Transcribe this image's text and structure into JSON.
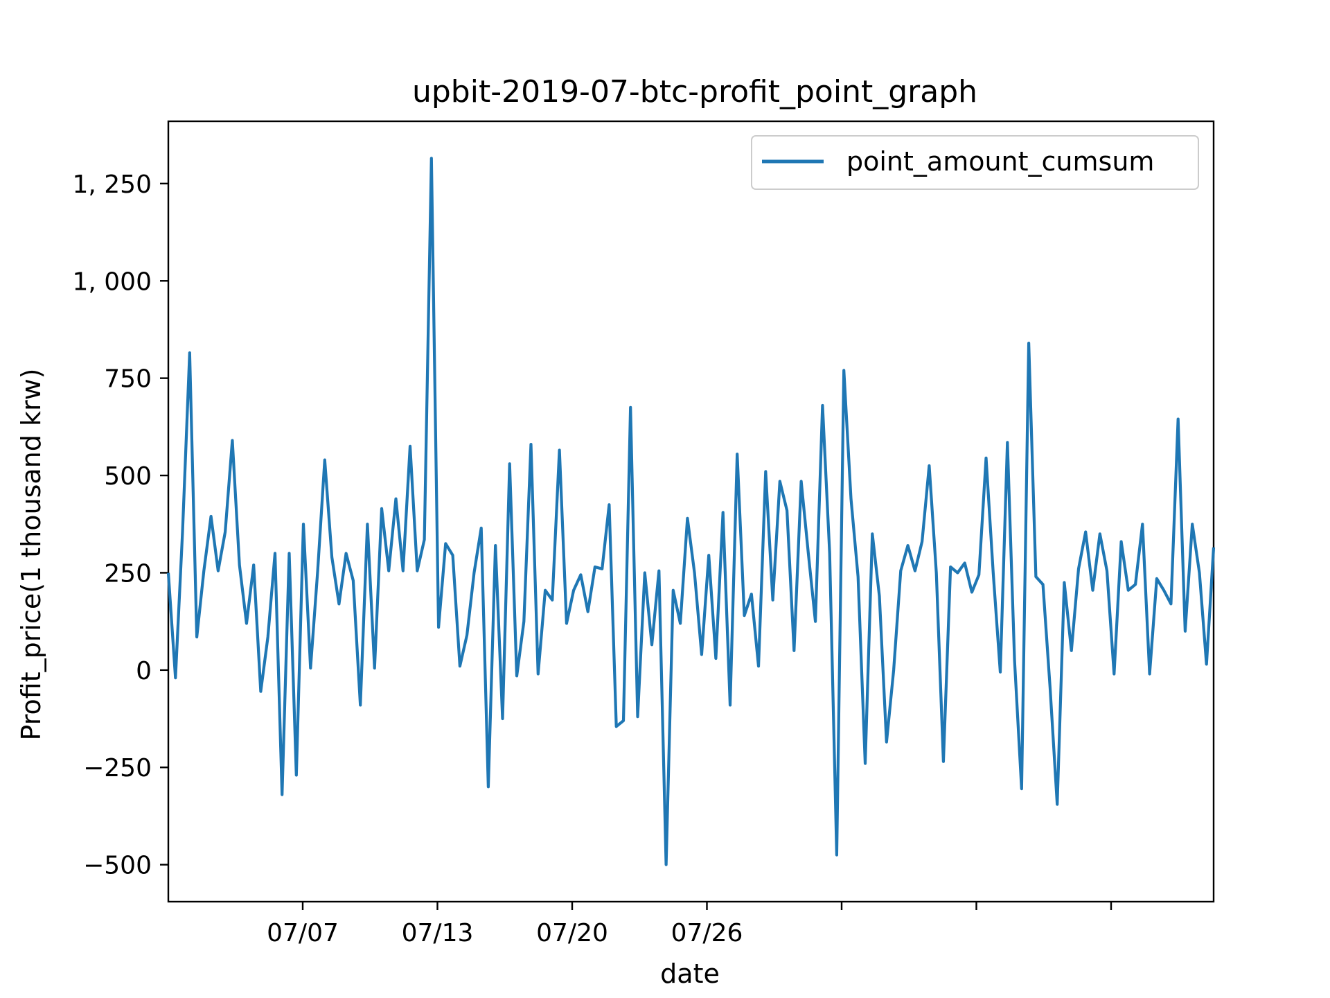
{
  "chart_data": {
    "type": "line",
    "title": "upbit-2019-07-btc-profit_point_graph",
    "xlabel": "date",
    "ylabel": "Profit_price(1 thousand krw)",
    "x_tick_labels": [
      "07/07",
      "07/13",
      "07/20",
      "07/26",
      "",
      "",
      ""
    ],
    "y_ticks": [
      -500,
      -250,
      0,
      250,
      500,
      750,
      1000,
      1250
    ],
    "y_tick_labels": [
      "−500",
      "−250",
      "0",
      "250",
      "500",
      "750",
      "1, 000",
      "1, 250"
    ],
    "ylim": [
      -595,
      1410
    ],
    "legend_position": "top-right",
    "grid": false,
    "series": [
      {
        "name": "point_amount_cumsum",
        "color": "#1f77b4",
        "values": [
          250,
          -20,
          355,
          815,
          85,
          255,
          395,
          255,
          355,
          590,
          270,
          120,
          270,
          -55,
          85,
          300,
          -320,
          300,
          -270,
          375,
          5,
          255,
          540,
          290,
          170,
          300,
          230,
          -90,
          375,
          5,
          415,
          255,
          440,
          255,
          575,
          255,
          335,
          1315,
          110,
          325,
          295,
          10,
          90,
          250,
          365,
          -300,
          320,
          -125,
          530,
          -15,
          125,
          580,
          -10,
          205,
          180,
          565,
          120,
          205,
          245,
          150,
          265,
          260,
          425,
          -145,
          -130,
          675,
          -120,
          250,
          65,
          255,
          -500,
          205,
          120,
          390,
          250,
          40,
          295,
          30,
          405,
          -90,
          555,
          140,
          195,
          10,
          510,
          180,
          485,
          410,
          50,
          485,
          300,
          125,
          680,
          300,
          -475,
          770,
          440,
          240,
          -240,
          350,
          190,
          -185,
          0,
          255,
          320,
          255,
          330,
          525,
          250,
          -235,
          265,
          250,
          275,
          200,
          245,
          545,
          250,
          -5,
          585,
          25,
          -305,
          840,
          240,
          220,
          -45,
          -345,
          225,
          50,
          260,
          355,
          205,
          350,
          255,
          -10,
          330,
          205,
          220,
          375,
          -10,
          235,
          205,
          170,
          645,
          100,
          375,
          250,
          15,
          315
        ]
      }
    ]
  }
}
